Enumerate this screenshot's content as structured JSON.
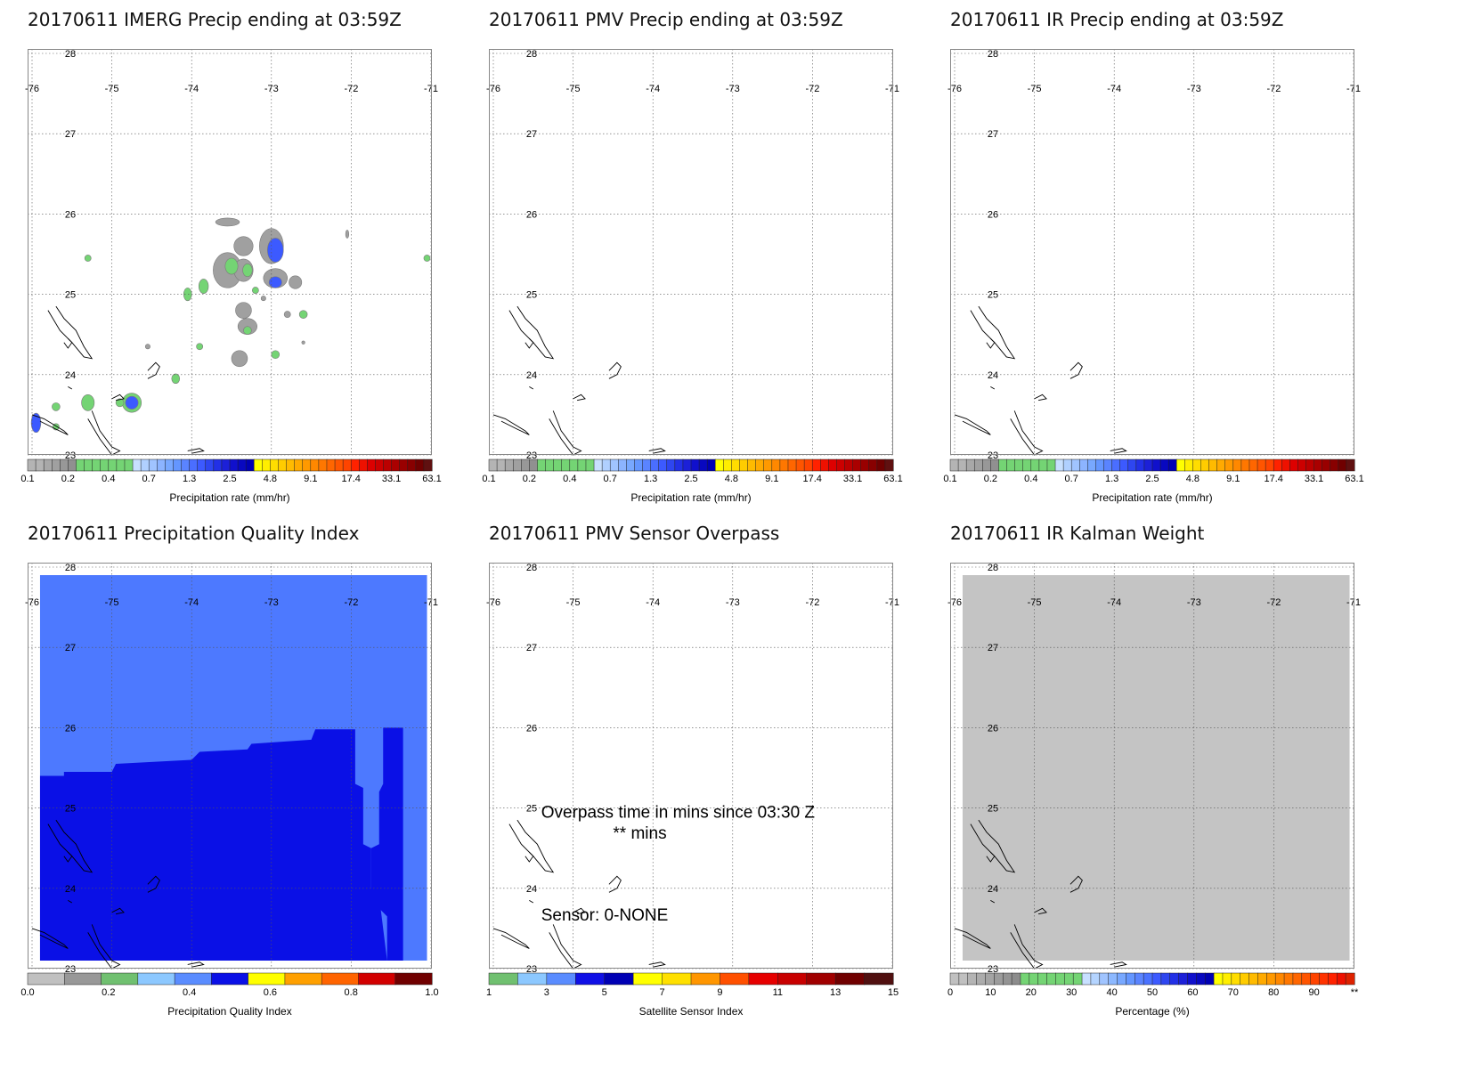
{
  "panels": [
    {
      "id": "imerg",
      "title": "20170611 IMERG Precip ending at 03:59Z",
      "cb_label": "Precipitation rate (mm/hr)",
      "cb": "precip",
      "fill": "imerg"
    },
    {
      "id": "pmv",
      "title": "20170611 PMV Precip ending at 03:59Z",
      "cb_label": "Precipitation rate (mm/hr)",
      "cb": "precip",
      "fill": "none"
    },
    {
      "id": "ir",
      "title": "20170611 IR Precip ending at 03:59Z",
      "cb_label": "Precipitation rate (mm/hr)",
      "cb": "precip",
      "fill": "none"
    },
    {
      "id": "pqi",
      "title": "20170611 Precipitation Quality Index",
      "cb_label": "Precipitation Quality Index",
      "cb": "pqi",
      "fill": "pqi"
    },
    {
      "id": "sensor",
      "title": "20170611 PMV Sensor Overpass",
      "cb_label": "Satellite Sensor Index",
      "cb": "sensor",
      "fill": "none"
    },
    {
      "id": "kalman",
      "title": "20170611 IR Kalman Weight",
      "cb_label": "Percentage (%)",
      "cb": "percent",
      "fill": "kalman"
    }
  ],
  "lon_ticks": [
    "-76",
    "-75",
    "-74",
    "-73",
    "-72",
    "-71"
  ],
  "lat_ticks": [
    "28",
    "27",
    "26",
    "25",
    "24",
    "23"
  ],
  "colorbars": {
    "precip": {
      "colors": [
        "#b4b4b4",
        "#b4b4b4",
        "#a8a8a8",
        "#a0a0a0",
        "#989898",
        "#909090",
        "#74d474",
        "#74d474",
        "#74d474",
        "#74d474",
        "#74d474",
        "#74d474",
        "#74d474",
        "#c8e0ff",
        "#b0d0ff",
        "#a0c4ff",
        "#8cb4ff",
        "#78a8ff",
        "#6496ff",
        "#5a84ff",
        "#4a6eff",
        "#3c5aff",
        "#2e46f0",
        "#2230e6",
        "#1c20d8",
        "#1010cc",
        "#0808c0",
        "#0000b4",
        "#ffff00",
        "#ffee00",
        "#ffdd00",
        "#ffcc00",
        "#ffbb00",
        "#ffaa00",
        "#ff9900",
        "#ff8800",
        "#ff7700",
        "#ff6600",
        "#ff5500",
        "#ff4400",
        "#ff2200",
        "#ee1100",
        "#dd0000",
        "#cc0000",
        "#bb0000",
        "#aa0000",
        "#990000",
        "#880000",
        "#700000",
        "#601010"
      ],
      "ticks": [
        "0.1",
        "0.2",
        "0.4",
        "0.7",
        "1.3",
        "2.5",
        "4.8",
        "9.1",
        "17.4",
        "33.1",
        "63.1"
      ]
    },
    "pqi": {
      "colors": [
        "#c0c0c0",
        "#989898",
        "#70c070",
        "#8cc8ff",
        "#5a8cff",
        "#0a10e6",
        "#ffff00",
        "#ffa000",
        "#ff6400",
        "#d20000",
        "#700000"
      ],
      "ticks": [
        "0.0",
        "0.2",
        "0.4",
        "0.6",
        "0.8",
        "1.0"
      ]
    },
    "sensor": {
      "colors": [
        "#70c070",
        "#8cc8ff",
        "#5a8cff",
        "#1010e6",
        "#0000b4",
        "#ffff00",
        "#ffe000",
        "#ff9600",
        "#ff5000",
        "#e60000",
        "#c80000",
        "#a00000",
        "#700000",
        "#501010"
      ],
      "ticks": [
        "1",
        "3",
        "5",
        "7",
        "9",
        "11",
        "13",
        "15"
      ]
    },
    "percent": {
      "colors": [
        "#c0c0c0",
        "#c0c0c0",
        "#b4b4b4",
        "#acacac",
        "#a4a4a4",
        "#9c9c9c",
        "#949494",
        "#8c8c8c",
        "#74d474",
        "#74d474",
        "#74d474",
        "#74d474",
        "#74d474",
        "#74d474",
        "#74d474",
        "#c8e0ff",
        "#b4d4ff",
        "#a0c4ff",
        "#8cb8ff",
        "#78a8ff",
        "#6496ff",
        "#5a84ff",
        "#4a72ff",
        "#3c5aff",
        "#2e46f0",
        "#2230e6",
        "#1c20d8",
        "#1010cc",
        "#0808c0",
        "#0000b4",
        "#ffff00",
        "#ffee00",
        "#ffdd00",
        "#ffcc00",
        "#ffbb00",
        "#ffaa00",
        "#ff9900",
        "#ff8800",
        "#ff7700",
        "#ff6600",
        "#ff5500",
        "#ff4400",
        "#ff3300",
        "#ff2200",
        "#ee1100",
        "#dd2200"
      ],
      "ticks": [
        "0",
        "10",
        "20",
        "30",
        "40",
        "50",
        "60",
        "70",
        "80",
        "90",
        "**"
      ]
    }
  },
  "sensor_text": {
    "overpass": "Overpass time in mins since 03:30 Z",
    "mins": "** mins",
    "sensor": "Sensor:   0-NONE"
  },
  "colors": {
    "pqi_light": "#4d79ff",
    "pqi_dark": "#0a10e6",
    "kalman_gray": "#c4c4c4",
    "precip_gray": "#a0a0a0",
    "precip_green": "#74d474",
    "precip_blue": "#3c5aff"
  }
}
